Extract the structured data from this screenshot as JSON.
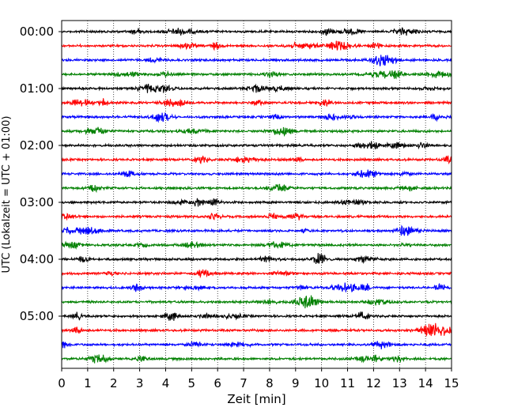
{
  "chart_data": {
    "type": "line",
    "title": "",
    "xlabel": "Zeit  [min]",
    "ylabel": "UTC (Lokalzeit = UTC + 01:00)",
    "xlim": [
      0,
      15
    ],
    "x_ticks": [
      "0",
      "1",
      "2",
      "3",
      "4",
      "5",
      "6",
      "7",
      "8",
      "9",
      "10",
      "11",
      "12",
      "13",
      "14",
      "15"
    ],
    "y_tick_labels": [
      "00:00",
      "01:00",
      "02:00",
      "03:00",
      "04:00",
      "05:00"
    ],
    "grid": "vertical dotted",
    "trace_minutes_per_row": 15,
    "rows_per_hour": 4,
    "row_start_times": [
      "00:00",
      "00:15",
      "00:30",
      "00:45",
      "01:00",
      "01:15",
      "01:30",
      "01:45",
      "02:00",
      "02:15",
      "02:30",
      "02:45",
      "03:00",
      "03:15",
      "03:30",
      "03:45",
      "04:00",
      "04:15",
      "04:30",
      "04:45",
      "05:00",
      "05:15",
      "05:30",
      "05:45"
    ],
    "row_colors": [
      "#000000",
      "#ff0000",
      "#0000ff",
      "#008000"
    ]
  }
}
